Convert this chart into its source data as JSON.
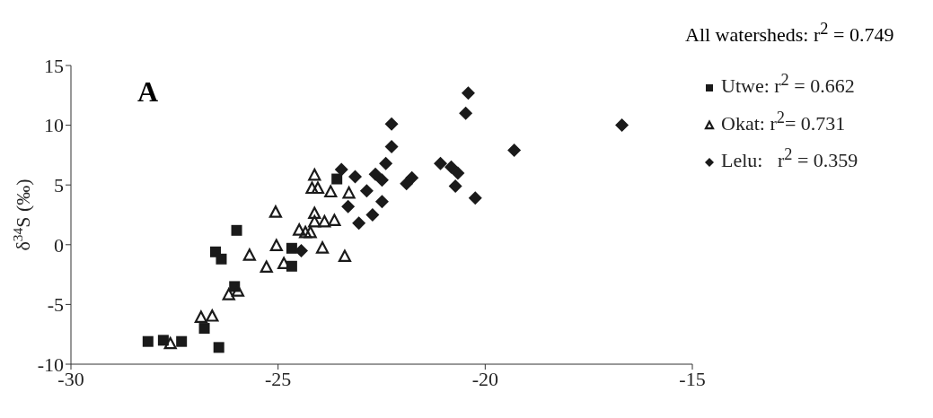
{
  "chart_data": {
    "type": "scatter",
    "ylabel": "δ$^{34}$S (‰)",
    "annotations": [
      "A",
      "All watersheds: r$^{2}$ = 0.749"
    ],
    "xlim": [
      -30,
      -15
    ],
    "xticks": [
      -30,
      -25,
      -20,
      -15
    ],
    "ylim": [
      -10,
      15
    ],
    "yticks": [
      -10,
      -5,
      0,
      5,
      10,
      15
    ],
    "grid": false,
    "legend": "right",
    "series": [
      {
        "name": "Utwe: r$^{2}$ = 0.662",
        "color": "#1a1a1a",
        "marker": "square",
        "x": [
          -28.14,
          -27.77,
          -27.33,
          -26.78,
          -26.43,
          -26.51,
          -26.37,
          -26.0,
          -26.05,
          -24.67,
          -24.67,
          -23.58
        ],
        "values": [
          -8.1,
          -8.0,
          -8.1,
          -7.0,
          -8.6,
          -0.6,
          -1.2,
          1.2,
          -3.5,
          -0.3,
          -1.8,
          5.5
        ]
      },
      {
        "name": "Okat: r$^{2}$= 0.731",
        "color": "#1a1a1a",
        "marker": "triangle",
        "x": [
          -27.6,
          -26.86,
          -26.59,
          -26.19,
          -25.97,
          -25.69,
          -25.28,
          -25.06,
          -25.04,
          -24.86,
          -24.49,
          -24.12,
          -24.18,
          -24.04,
          -23.73,
          -23.29,
          -24.12,
          -24.12,
          -23.88,
          -23.64,
          -24.34,
          -24.22,
          -23.93,
          -23.39
        ],
        "values": [
          -8.3,
          -6.1,
          -6.0,
          -4.2,
          -3.9,
          -0.9,
          -1.9,
          2.7,
          -0.1,
          -1.6,
          1.2,
          5.8,
          4.7,
          4.7,
          4.4,
          4.3,
          2.6,
          1.9,
          1.9,
          2.0,
          1.0,
          1.0,
          -0.3,
          -1.0
        ]
      },
      {
        "name": "Lelu:   r$^{2}$ = 0.359",
        "color": "#1a1a1a",
        "marker": "diamond",
        "x": [
          -24.44,
          -23.47,
          -23.14,
          -22.86,
          -22.65,
          -22.49,
          -22.4,
          -22.26,
          -22.26,
          -23.31,
          -23.05,
          -22.72,
          -22.49,
          -21.9,
          -21.77,
          -21.08,
          -20.82,
          -20.66,
          -20.72,
          -20.41,
          -20.47,
          -20.24,
          -19.3,
          -16.7
        ],
        "values": [
          -0.5,
          6.3,
          5.7,
          4.5,
          5.9,
          5.4,
          6.8,
          8.2,
          10.1,
          3.2,
          1.8,
          2.5,
          3.6,
          5.1,
          5.6,
          6.8,
          6.5,
          6.0,
          4.9,
          12.7,
          11.0,
          3.9,
          7.9,
          10.0
        ]
      }
    ]
  }
}
